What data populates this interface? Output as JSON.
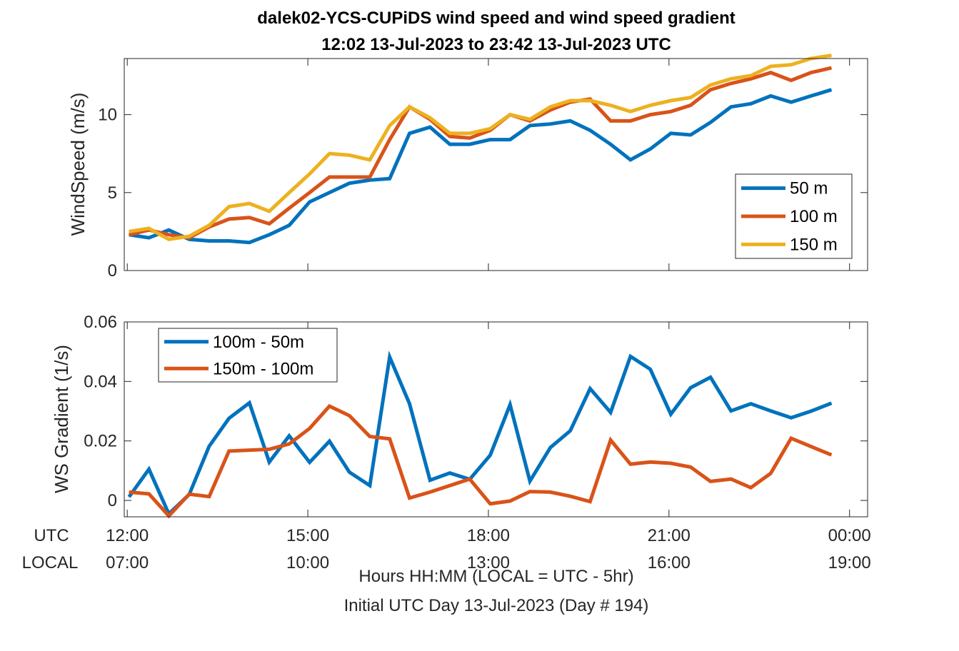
{
  "chart_data": [
    {
      "type": "line",
      "title": "dalek02-YCS-CUPiDS  wind speed and wind speed gradient",
      "subtitle": "12:02 13-Jul-2023 to 23:42 13-Jul-2023  UTC",
      "ylabel": "WindSpeed (m/s)",
      "ylim": [
        0,
        13.6
      ],
      "yticks": [
        "0",
        "5",
        "10"
      ],
      "xlim_hours": [
        11.95,
        24.3
      ],
      "legend_position": "right",
      "x_hours": [
        12.03,
        12.36,
        12.69,
        13.03,
        13.36,
        13.69,
        14.03,
        14.36,
        14.69,
        15.03,
        15.36,
        15.69,
        16.03,
        16.36,
        16.69,
        17.03,
        17.36,
        17.69,
        18.03,
        18.36,
        18.69,
        19.03,
        19.36,
        19.69,
        20.03,
        20.36,
        20.69,
        21.03,
        21.36,
        21.69,
        22.03,
        22.36,
        22.69,
        23.03,
        23.36,
        23.7
      ],
      "series": [
        {
          "name": "50 m",
          "color": "#0072BD",
          "values": [
            2.3,
            2.1,
            2.6,
            2.0,
            1.9,
            1.9,
            1.8,
            2.3,
            2.9,
            4.4,
            5.0,
            5.6,
            5.8,
            5.9,
            8.8,
            9.2,
            8.1,
            8.1,
            8.4,
            8.4,
            9.3,
            9.4,
            9.6,
            9.0,
            8.1,
            7.1,
            7.8,
            8.8,
            8.7,
            9.5,
            10.5,
            10.7,
            11.2,
            10.8,
            11.2,
            11.6
          ]
        },
        {
          "name": "100 m",
          "color": "#D95319",
          "values": [
            2.3,
            2.6,
            2.3,
            2.1,
            2.8,
            3.3,
            3.4,
            3.0,
            4.0,
            5.0,
            6.0,
            6.0,
            6.0,
            8.4,
            10.5,
            9.7,
            8.6,
            8.5,
            9.0,
            10.0,
            9.6,
            10.3,
            10.8,
            11.0,
            9.6,
            9.6,
            10.0,
            10.2,
            10.6,
            11.6,
            12.0,
            12.3,
            12.7,
            12.2,
            12.7,
            13.0
          ]
        },
        {
          "name": "150 m",
          "color": "#EDB120",
          "values": [
            2.5,
            2.7,
            2.0,
            2.2,
            2.9,
            4.1,
            4.3,
            3.8,
            5.0,
            6.2,
            7.5,
            7.4,
            7.1,
            9.3,
            10.5,
            9.8,
            8.8,
            8.8,
            9.1,
            10.0,
            9.7,
            10.5,
            10.9,
            10.9,
            10.6,
            10.2,
            10.6,
            10.9,
            11.1,
            11.9,
            12.3,
            12.5,
            13.1,
            13.2,
            13.6,
            13.8
          ]
        }
      ]
    },
    {
      "type": "line",
      "ylabel": "WS Gradient (1/s)",
      "ylim": [
        -0.0055,
        0.06
      ],
      "yticks": [
        "0",
        "0.02",
        "0.04",
        "0.06"
      ],
      "xlim_hours": [
        11.95,
        24.3
      ],
      "legend_position": "top-left",
      "x_hours": [
        12.03,
        12.36,
        12.69,
        13.03,
        13.36,
        13.69,
        14.03,
        14.36,
        14.69,
        15.03,
        15.36,
        15.69,
        16.03,
        16.36,
        16.69,
        17.03,
        17.36,
        17.69,
        18.03,
        18.36,
        18.69,
        19.03,
        19.36,
        19.69,
        20.03,
        20.36,
        20.69,
        21.03,
        21.36,
        21.69,
        22.03,
        22.36,
        22.69,
        23.03,
        23.36,
        23.7
      ],
      "series": [
        {
          "name": "100m - 50m",
          "color": "#0072BD",
          "values": [
            0.0012,
            0.0105,
            -0.0045,
            0.002,
            0.0182,
            0.0276,
            0.0328,
            0.0129,
            0.0217,
            0.0128,
            0.0199,
            0.0095,
            0.005,
            0.0482,
            0.0325,
            0.0068,
            0.0092,
            0.0071,
            0.0152,
            0.0322,
            0.0065,
            0.0178,
            0.0234,
            0.0376,
            0.0296,
            0.0484,
            0.0441,
            0.029,
            0.0379,
            0.0414,
            0.0301,
            0.0325,
            0.0301,
            0.0278,
            0.03,
            0.0327
          ]
        },
        {
          "name": "150m - 100m",
          "color": "#D95319",
          "values": [
            0.0028,
            0.0022,
            -0.0052,
            0.0021,
            0.0013,
            0.0166,
            0.0169,
            0.0172,
            0.019,
            0.0242,
            0.0317,
            0.0285,
            0.0215,
            0.0207,
            0.0008,
            0.0028,
            0.005,
            0.0072,
            -0.0011,
            -0.0002,
            0.003,
            0.0028,
            0.0014,
            -0.0004,
            0.0203,
            0.0122,
            0.0129,
            0.0125,
            0.0112,
            0.0064,
            0.0072,
            0.0043,
            0.0091,
            0.0209,
            0.0181,
            0.0153
          ]
        }
      ]
    }
  ],
  "x_axis": {
    "row_labels": [
      "UTC",
      "LOCAL"
    ],
    "ticks": [
      {
        "hour": 12,
        "utc": "12:00",
        "local": "07:00"
      },
      {
        "hour": 15,
        "utc": "15:00",
        "local": "10:00"
      },
      {
        "hour": 18,
        "utc": "18:00",
        "local": "13:00"
      },
      {
        "hour": 21,
        "utc": "21:00",
        "local": "16:00"
      },
      {
        "hour": 24,
        "utc": "00:00",
        "local": "19:00"
      }
    ],
    "xlabel_line1": "Hours HH:MM  (LOCAL = UTC - 5hr)",
    "xlabel_line2": "Initial UTC Day 13-Jul-2023 (Day # 194)"
  }
}
